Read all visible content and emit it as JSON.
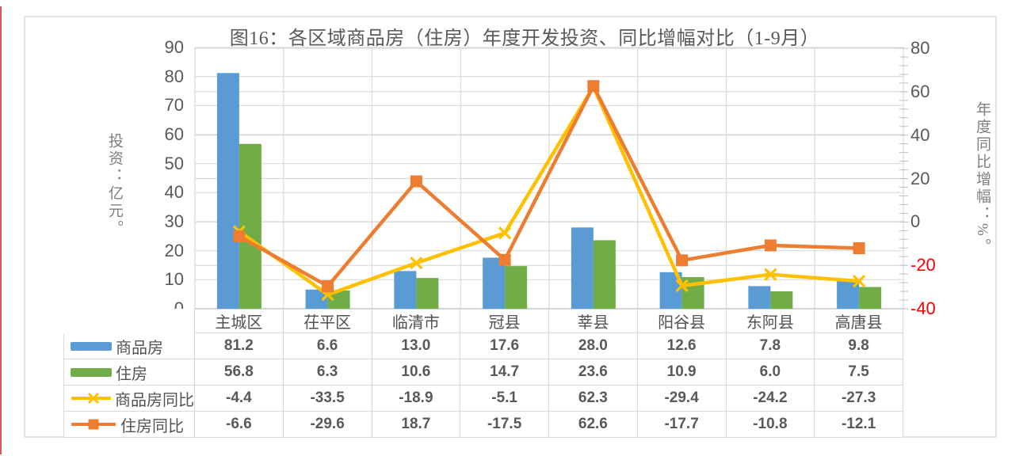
{
  "page": {
    "accent_line_color": "#dd5757",
    "background": "#ffffff"
  },
  "chart": {
    "title": "图16：各区域商品房（住房）年度开发投资、同比增幅对比（1-9月）",
    "left_axis_title": "投资：亿元。",
    "right_axis_title": "年度同比增幅：%。",
    "colors": {
      "bar_blue": "#5B9BD5",
      "bar_green": "#70AD47",
      "line_yellow": "#FFC000",
      "line_orange": "#ED7D31",
      "gridline": "#D9D9D9",
      "axis_line": "#BFBFBF",
      "text_gray": "#595959",
      "negative_tick_red": "#FF0000"
    }
  },
  "chart_data": {
    "type": "bar",
    "subtype": "combo-bar-line-with-data-table",
    "title": "图16：各区域商品房（住房）年度开发投资、同比增幅对比（1-9月）",
    "categories": [
      "主城区",
      "茌平区",
      "临清市",
      "冠县",
      "莘县",
      "阳谷县",
      "东阿县",
      "高唐县"
    ],
    "series": [
      {
        "name": "商品房",
        "type": "bar",
        "axis": "left",
        "color": "#5B9BD5",
        "marker": "rect",
        "values": [
          81.2,
          6.6,
          13.0,
          17.6,
          28.0,
          12.6,
          7.8,
          9.8
        ]
      },
      {
        "name": "住房",
        "type": "bar",
        "axis": "left",
        "color": "#70AD47",
        "marker": "rect",
        "values": [
          56.8,
          6.3,
          10.6,
          14.7,
          23.6,
          10.9,
          6.0,
          7.5
        ]
      },
      {
        "name": "商品房同比",
        "type": "line",
        "axis": "right",
        "color": "#FFC000",
        "marker": "x",
        "values": [
          -4.4,
          -33.5,
          -18.9,
          -5.1,
          62.3,
          -29.4,
          -24.2,
          -27.3
        ]
      },
      {
        "name": "住房同比",
        "type": "line",
        "axis": "right",
        "color": "#ED7D31",
        "marker": "square",
        "values": [
          -6.6,
          -29.6,
          18.7,
          -17.5,
          62.6,
          -17.7,
          -10.8,
          -12.1
        ]
      }
    ],
    "left_axis": {
      "label": "投资：亿元。",
      "min": 0,
      "max": 90,
      "step": 10,
      "ticks": [
        90,
        80,
        70,
        60,
        50,
        40,
        30,
        20,
        10,
        0
      ]
    },
    "right_axis": {
      "label": "年度同比增幅：%。",
      "min": -40,
      "max": 80,
      "step": 20,
      "ticks": [
        80,
        60,
        40,
        20,
        0,
        -20,
        -40
      ],
      "minor_step": 4
    },
    "grid": true,
    "legend_position": "table-left-column",
    "value_format_decimals": 1
  }
}
